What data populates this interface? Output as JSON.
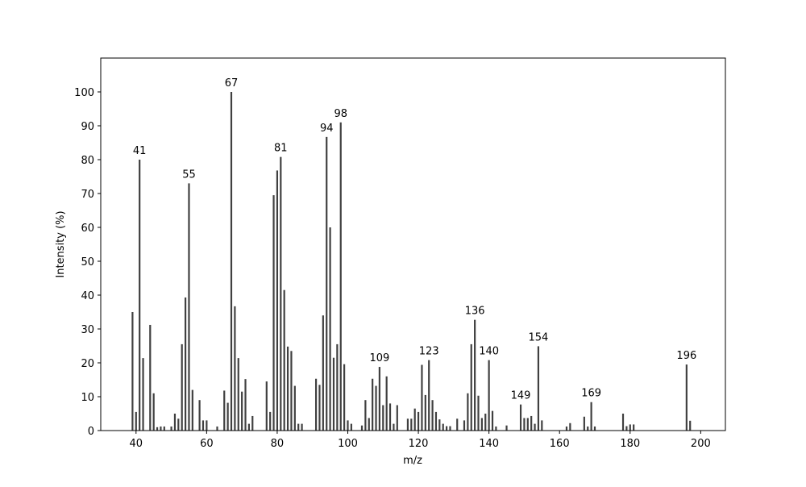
{
  "chart_data": {
    "type": "bar",
    "xlabel": "m/z",
    "ylabel": "Intensity (%)",
    "x": [
      39,
      40,
      41,
      42,
      44,
      45,
      46,
      47,
      48,
      50,
      51,
      52,
      53,
      54,
      55,
      56,
      58,
      59,
      60,
      63,
      65,
      66,
      67,
      68,
      69,
      70,
      71,
      72,
      73,
      77,
      78,
      79,
      80,
      81,
      82,
      83,
      84,
      85,
      86,
      87,
      91,
      92,
      93,
      94,
      95,
      96,
      97,
      98,
      99,
      100,
      101,
      104,
      105,
      106,
      107,
      108,
      109,
      110,
      111,
      112,
      113,
      114,
      117,
      118,
      119,
      120,
      121,
      122,
      123,
      124,
      125,
      126,
      127,
      128,
      129,
      131,
      133,
      134,
      135,
      136,
      137,
      138,
      139,
      140,
      141,
      142,
      145,
      149,
      150,
      151,
      152,
      153,
      154,
      155,
      162,
      163,
      167,
      168,
      169,
      170,
      178,
      179,
      180,
      181,
      196,
      197
    ],
    "values": [
      35,
      5.5,
      80,
      21.4,
      31.2,
      11,
      1,
      1.2,
      1.2,
      1.2,
      5,
      3.5,
      25.5,
      39.3,
      73,
      12,
      9,
      3,
      3,
      1.2,
      11.8,
      8.2,
      100,
      36.7,
      21.4,
      11.5,
      15.2,
      2,
      4.3,
      14.5,
      5.5,
      69.5,
      76.8,
      80.8,
      41.5,
      24.8,
      23.5,
      13.2,
      2,
      2,
      15.3,
      13.5,
      34,
      86.7,
      60,
      21.5,
      25.5,
      91,
      19.6,
      3,
      2,
      1.5,
      9,
      3.7,
      15.3,
      13.2,
      18.8,
      7.5,
      16,
      8,
      2,
      7.5,
      3.5,
      3.5,
      6.5,
      5.5,
      19.4,
      10.5,
      20.8,
      9,
      5.5,
      3.3,
      2,
      1.3,
      1.3,
      3.5,
      3,
      11,
      25.5,
      32.7,
      10.3,
      3.7,
      5,
      20.8,
      5.8,
      1.2,
      1.5,
      7.7,
      3.7,
      3.7,
      4.3,
      2,
      24.9,
      3,
      1.2,
      2.2,
      4.1,
      1.2,
      8.4,
      1.2,
      5,
      1.3,
      1.8,
      1.8,
      19.5,
      2.9
    ],
    "peak_labels": [
      41,
      55,
      67,
      81,
      94,
      98,
      109,
      123,
      136,
      140,
      149,
      154,
      169,
      196
    ],
    "color": "#404040",
    "xlim": [
      30,
      207
    ],
    "xticks": [
      40,
      60,
      80,
      100,
      120,
      140,
      160,
      180,
      200
    ],
    "ylim": [
      0,
      110
    ],
    "yticks": [
      0,
      10,
      20,
      30,
      40,
      50,
      60,
      70,
      80,
      90,
      100
    ]
  }
}
